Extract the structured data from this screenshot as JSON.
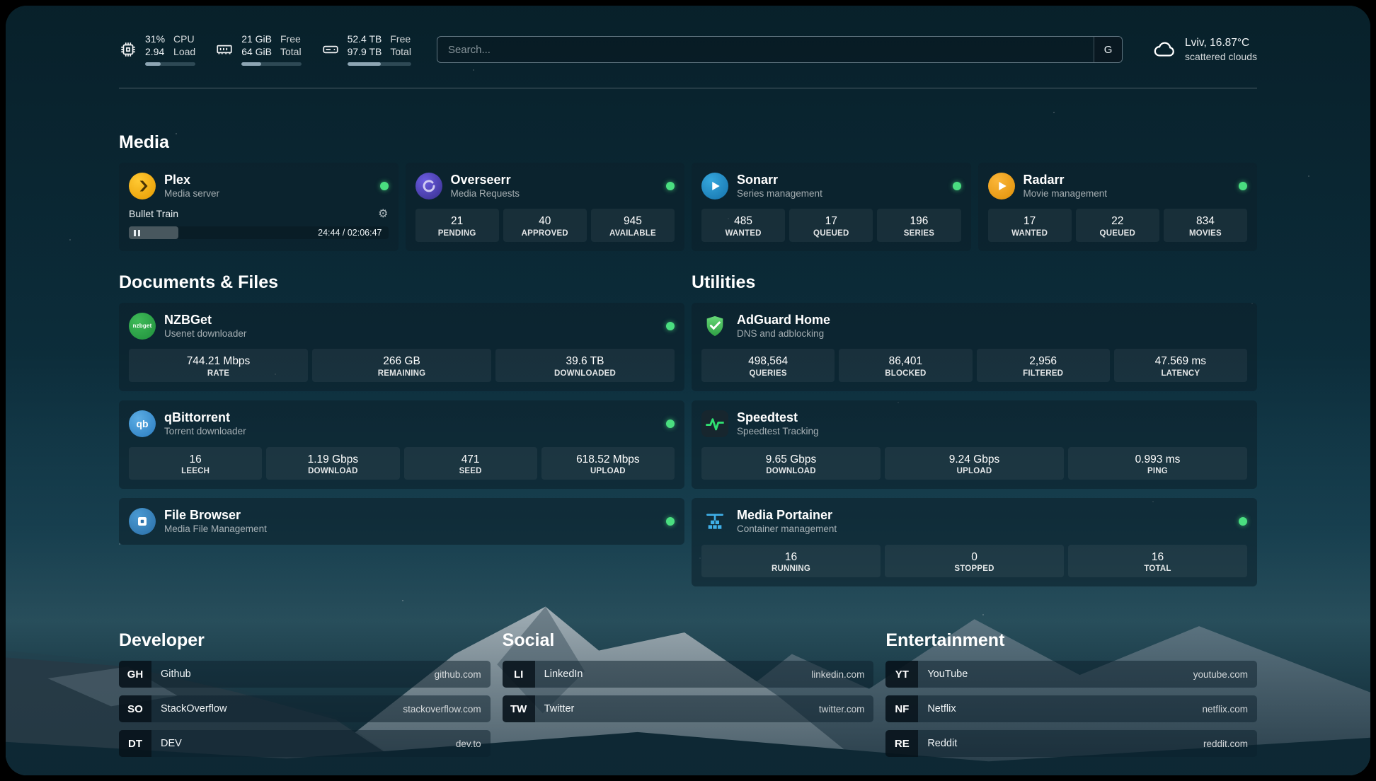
{
  "theme": {
    "status_online": "#4ade80",
    "bar_fill": "#8ea6b4"
  },
  "topbar": {
    "cpu": {
      "icon": "cpu-chip-icon",
      "value": "31%",
      "sub": "2.94",
      "label_top": "CPU",
      "label_bottom": "Load",
      "percent": 31
    },
    "memory": {
      "icon": "memory-icon",
      "value": "21 GiB",
      "sub": "64 GiB",
      "label_top": "Free",
      "label_bottom": "Total",
      "percent": 33
    },
    "disk": {
      "icon": "hard-drive-icon",
      "value": "52.4 TB",
      "sub": "97.9 TB",
      "label_top": "Free",
      "label_bottom": "Total",
      "percent": 53
    },
    "search": {
      "placeholder": "Search...",
      "provider_button": "G"
    },
    "weather": {
      "icon": "cloud-icon",
      "location": "Lviv, 16.87°C",
      "condition": "scattered clouds"
    }
  },
  "sections": {
    "media": "Media",
    "documents": "Documents & Files",
    "utilities": "Utilities",
    "developer": "Developer",
    "social": "Social",
    "entertainment": "Entertainment"
  },
  "services": {
    "plex": {
      "name": "Plex",
      "desc": "Media server",
      "now_playing": "Bullet Train",
      "gear_icon": "⚙",
      "time": "24:44 / 02:06:47",
      "progress_percent": 19
    },
    "overseerr": {
      "name": "Overseerr",
      "desc": "Media Requests",
      "stats": [
        {
          "value": "21",
          "label": "PENDING"
        },
        {
          "value": "40",
          "label": "APPROVED"
        },
        {
          "value": "945",
          "label": "AVAILABLE"
        }
      ]
    },
    "sonarr": {
      "name": "Sonarr",
      "desc": "Series management",
      "stats": [
        {
          "value": "485",
          "label": "WANTED"
        },
        {
          "value": "17",
          "label": "QUEUED"
        },
        {
          "value": "196",
          "label": "SERIES"
        }
      ]
    },
    "radarr": {
      "name": "Radarr",
      "desc": "Movie management",
      "stats": [
        {
          "value": "17",
          "label": "WANTED"
        },
        {
          "value": "22",
          "label": "QUEUED"
        },
        {
          "value": "834",
          "label": "MOVIES"
        }
      ]
    },
    "nzbget": {
      "name": "NZBGet",
      "desc": "Usenet downloader",
      "icon_text": "nzbget",
      "stats": [
        {
          "value": "744.21 Mbps",
          "label": "RATE"
        },
        {
          "value": "266 GB",
          "label": "REMAINING"
        },
        {
          "value": "39.6 TB",
          "label": "DOWNLOADED"
        }
      ]
    },
    "qbittorrent": {
      "name": "qBittorrent",
      "desc": "Torrent downloader",
      "icon_text": "qb",
      "stats": [
        {
          "value": "16",
          "label": "LEECH"
        },
        {
          "value": "1.19 Gbps",
          "label": "DOWNLOAD"
        },
        {
          "value": "471",
          "label": "SEED"
        },
        {
          "value": "618.52 Mbps",
          "label": "UPLOAD"
        }
      ]
    },
    "filebrowser": {
      "name": "File Browser",
      "desc": "Media File Management"
    },
    "adguard": {
      "name": "AdGuard Home",
      "desc": "DNS and adblocking",
      "stats": [
        {
          "value": "498,564",
          "label": "QUERIES"
        },
        {
          "value": "86,401",
          "label": "BLOCKED"
        },
        {
          "value": "2,956",
          "label": "FILTERED"
        },
        {
          "value": "47.569 ms",
          "label": "LATENCY"
        }
      ]
    },
    "speedtest": {
      "name": "Speedtest",
      "desc": "Speedtest Tracking",
      "stats": [
        {
          "value": "9.65 Gbps",
          "label": "DOWNLOAD"
        },
        {
          "value": "9.24 Gbps",
          "label": "UPLOAD"
        },
        {
          "value": "0.993 ms",
          "label": "PING"
        }
      ]
    },
    "portainer": {
      "name": "Media Portainer",
      "desc": "Container management",
      "stats": [
        {
          "value": "16",
          "label": "RUNNING"
        },
        {
          "value": "0",
          "label": "STOPPED"
        },
        {
          "value": "16",
          "label": "TOTAL"
        }
      ]
    }
  },
  "bookmarks": {
    "developer": [
      {
        "abbr": "GH",
        "name": "Github",
        "href": "github.com"
      },
      {
        "abbr": "SO",
        "name": "StackOverflow",
        "href": "stackoverflow.com"
      },
      {
        "abbr": "DT",
        "name": "DEV",
        "href": "dev.to"
      }
    ],
    "social": [
      {
        "abbr": "LI",
        "name": "LinkedIn",
        "href": "linkedin.com"
      },
      {
        "abbr": "TW",
        "name": "Twitter",
        "href": "twitter.com"
      }
    ],
    "entertainment": [
      {
        "abbr": "YT",
        "name": "YouTube",
        "href": "youtube.com"
      },
      {
        "abbr": "NF",
        "name": "Netflix",
        "href": "netflix.com"
      },
      {
        "abbr": "RE",
        "name": "Reddit",
        "href": "reddit.com"
      }
    ]
  }
}
